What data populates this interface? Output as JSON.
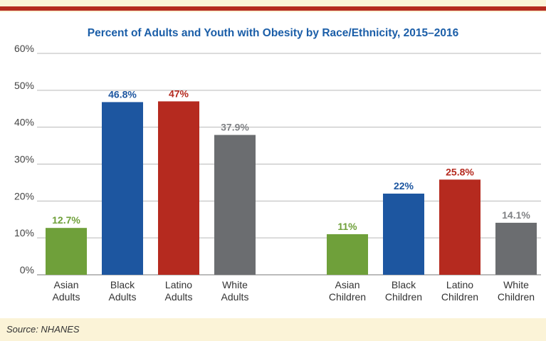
{
  "source_label": "Source: NHANES",
  "chart_data": {
    "type": "bar",
    "title": "Percent of Adults and Youth with Obesity by Race/Ethnicity, 2015–2016",
    "ylim": [
      0,
      60
    ],
    "yticks": [
      "0%",
      "10%",
      "20%",
      "30%",
      "40%",
      "50%",
      "60%"
    ],
    "grid": true,
    "categories": [
      "Asian Adults",
      "Black Adults",
      "Latino Adults",
      "White Adults",
      "Asian Children",
      "Black Children",
      "Latino Children",
      "White Children"
    ],
    "category_lines": [
      [
        "Asian",
        "Adults"
      ],
      [
        "Black",
        "Adults"
      ],
      [
        "Latino",
        "Adults"
      ],
      [
        "White",
        "Adults"
      ],
      [
        "Asian",
        "Children"
      ],
      [
        "Black",
        "Children"
      ],
      [
        "Latino",
        "Children"
      ],
      [
        "White",
        "Children"
      ]
    ],
    "values": [
      12.7,
      46.8,
      47,
      37.9,
      11,
      22,
      25.8,
      14.1
    ],
    "value_labels": [
      "12.7%",
      "46.8%",
      "47%",
      "37.9%",
      "11%",
      "22%",
      "25.8%",
      "14.1%"
    ],
    "colors": [
      "#6fa03a",
      "#1d56a0",
      "#b52a1f",
      "#6b6d70",
      "#6fa03a",
      "#1d56a0",
      "#b52a1f",
      "#6b6d70"
    ],
    "label_colors": [
      "#6fa03a",
      "#1d56a0",
      "#b52a1f",
      "#808285",
      "#6fa03a",
      "#1d56a0",
      "#b52a1f",
      "#808285"
    ]
  }
}
